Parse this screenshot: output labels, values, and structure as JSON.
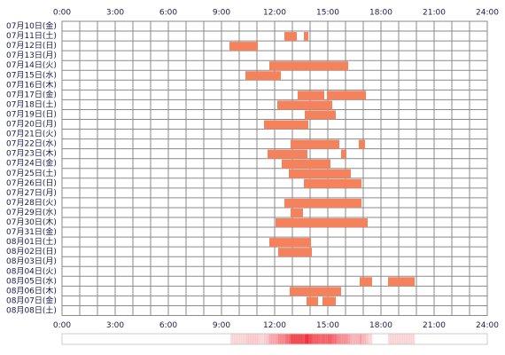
{
  "chart_data": {
    "type": "timeline",
    "categories": [
      "07月10日(金)",
      "07月11日(土)",
      "07月12日(日)",
      "07月13日(月)",
      "07月14日(火)",
      "07月15日(水)",
      "07月16日(木)",
      "07月17日(金)",
      "07月18日(土)",
      "07月19日(日)",
      "07月20日(月)",
      "07月21日(火)",
      "07月22日(水)",
      "07月23日(木)",
      "07月24日(金)",
      "07月25日(土)",
      "07月26日(日)",
      "07月27日(月)",
      "07月28日(火)",
      "07月29日(水)",
      "07月30日(木)",
      "07月31日(金)",
      "08月01日(土)",
      "08月02日(日)",
      "08月03日(月)",
      "08月04日(火)",
      "08月05日(水)",
      "08月06日(木)",
      "08月07日(金)",
      "08月08日(土)"
    ],
    "intervals": [
      [],
      [
        [
          12.55,
          13.25
        ],
        [
          13.65,
          13.9
        ]
      ],
      [
        [
          9.45,
          11.05
        ]
      ],
      [],
      [
        [
          11.7,
          16.15
        ]
      ],
      [
        [
          10.35,
          12.35
        ]
      ],
      [],
      [
        [
          13.3,
          14.8
        ],
        [
          14.95,
          17.15
        ]
      ],
      [
        [
          12.15,
          15.25
        ]
      ],
      [
        [
          13.7,
          15.45
        ]
      ],
      [
        [
          11.4,
          13.9
        ]
      ],
      [],
      [
        [
          12.9,
          15.65
        ],
        [
          16.75,
          17.1
        ]
      ],
      [
        [
          11.6,
          13.85
        ],
        [
          15.75,
          16.05
        ]
      ],
      [
        [
          12.4,
          15.15
        ]
      ],
      [
        [
          12.8,
          16.3
        ]
      ],
      [
        [
          13.65,
          16.9
        ]
      ],
      [],
      [
        [
          12.55,
          16.9
        ]
      ],
      [
        [
          12.9,
          13.6
        ]
      ],
      [
        [
          12.05,
          16.65
        ],
        [
          16.65,
          17.25
        ]
      ],
      [],
      [
        [
          11.7,
          14.05
        ]
      ],
      [
        [
          12.2,
          14.1
        ]
      ],
      [],
      [],
      [
        [
          16.8,
          17.5
        ],
        [
          18.4,
          19.9
        ]
      ],
      [
        [
          12.85,
          15.75
        ]
      ],
      [
        [
          13.8,
          14.45
        ],
        [
          14.7,
          15.45
        ]
      ],
      []
    ],
    "color": "#f4825c",
    "xlim": [
      0,
      24
    ],
    "xticks": [
      {
        "value": 0,
        "label": "0:00"
      },
      {
        "value": 3,
        "label": "3:00"
      },
      {
        "value": 6,
        "label": "6:00"
      },
      {
        "value": 9,
        "label": "9:00"
      },
      {
        "value": 12,
        "label": "12:00"
      },
      {
        "value": 15,
        "label": "15:00"
      },
      {
        "value": 18,
        "label": "18:00"
      },
      {
        "value": 21,
        "label": "21:00"
      },
      {
        "value": 24,
        "label": "24:00"
      }
    ],
    "grid": true
  }
}
